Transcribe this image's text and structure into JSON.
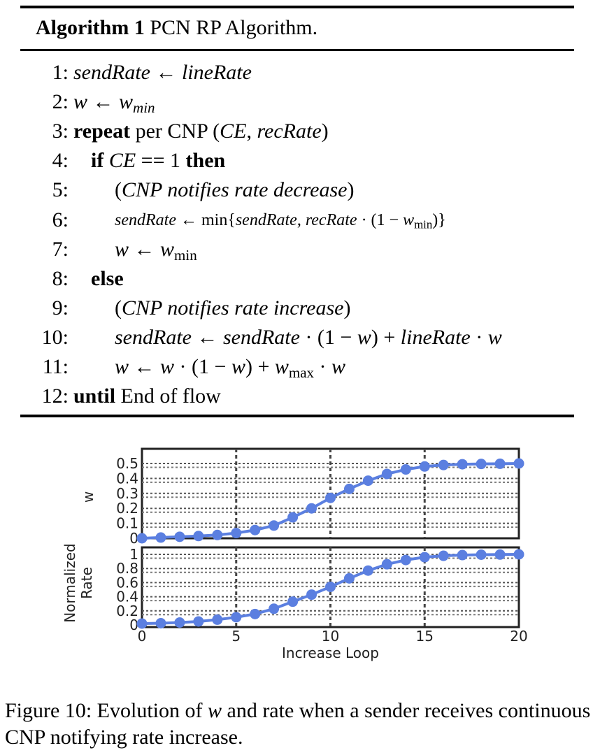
{
  "algorithm": {
    "label": "Algorithm 1",
    "title": "PCN RP Algorithm.",
    "lines": [
      {
        "num": "1:",
        "indent": 0,
        "parts": [
          {
            "t": "sendRate",
            "s": "it"
          },
          {
            "t": " ← ",
            "s": ""
          },
          {
            "t": "lineRate",
            "s": "it"
          }
        ]
      },
      {
        "num": "2:",
        "indent": 0,
        "parts": [
          {
            "t": "w",
            "s": "it"
          },
          {
            "t": " ← ",
            "s": ""
          },
          {
            "t": "w",
            "s": "it"
          },
          {
            "t": "min",
            "s": "it-sub"
          }
        ]
      },
      {
        "num": "3:",
        "indent": 0,
        "parts": [
          {
            "t": "repeat",
            "s": "b"
          },
          {
            "t": " per CNP (",
            "s": ""
          },
          {
            "t": "CE",
            "s": "it"
          },
          {
            "t": ", ",
            "s": ""
          },
          {
            "t": "recRate",
            "s": "it"
          },
          {
            "t": ")",
            "s": ""
          }
        ]
      },
      {
        "num": "4:",
        "indent": 1,
        "parts": [
          {
            "t": "if",
            "s": "b"
          },
          {
            "t": "  ",
            "s": ""
          },
          {
            "t": "CE",
            "s": "it"
          },
          {
            "t": " == 1  ",
            "s": ""
          },
          {
            "t": "then",
            "s": "b"
          }
        ]
      },
      {
        "num": "5:",
        "indent": 2,
        "parts": [
          {
            "t": "(",
            "s": ""
          },
          {
            "t": "CNP notifies rate decrease",
            "s": "it"
          },
          {
            "t": ")",
            "s": ""
          }
        ]
      },
      {
        "num": "6:",
        "indent": 2,
        "small": true,
        "parts": [
          {
            "t": "sendRate",
            "s": "it"
          },
          {
            "t": " ← min{",
            "s": ""
          },
          {
            "t": "sendRate",
            "s": "it"
          },
          {
            "t": ", ",
            "s": ""
          },
          {
            "t": "recRate",
            "s": "it"
          },
          {
            "t": " · (1 − ",
            "s": ""
          },
          {
            "t": "w",
            "s": "it"
          },
          {
            "t": "min",
            "s": "sub"
          },
          {
            "t": ")}",
            "s": ""
          }
        ]
      },
      {
        "num": "7:",
        "indent": 2,
        "parts": [
          {
            "t": "w",
            "s": "it"
          },
          {
            "t": " ← ",
            "s": ""
          },
          {
            "t": "w",
            "s": "it"
          },
          {
            "t": "min",
            "s": "sub"
          }
        ]
      },
      {
        "num": "8:",
        "indent": 1,
        "parts": [
          {
            "t": "else",
            "s": "b"
          }
        ]
      },
      {
        "num": "9:",
        "indent": 2,
        "parts": [
          {
            "t": "(",
            "s": ""
          },
          {
            "t": "CNP notifies rate increase",
            "s": "it"
          },
          {
            "t": ")",
            "s": ""
          }
        ]
      },
      {
        "num": "10:",
        "indent": 2,
        "parts": [
          {
            "t": "sendRate",
            "s": "it"
          },
          {
            "t": " ← ",
            "s": ""
          },
          {
            "t": "sendRate",
            "s": "it"
          },
          {
            "t": " · (1 − ",
            "s": ""
          },
          {
            "t": "w",
            "s": "it"
          },
          {
            "t": ") + ",
            "s": ""
          },
          {
            "t": "lineRate",
            "s": "it"
          },
          {
            "t": " · ",
            "s": ""
          },
          {
            "t": "w",
            "s": "it"
          }
        ]
      },
      {
        "num": "11:",
        "indent": 2,
        "parts": [
          {
            "t": "w",
            "s": "it"
          },
          {
            "t": " ← ",
            "s": ""
          },
          {
            "t": "w",
            "s": "it"
          },
          {
            "t": " · (1 − ",
            "s": ""
          },
          {
            "t": "w",
            "s": "it"
          },
          {
            "t": ") + ",
            "s": ""
          },
          {
            "t": "w",
            "s": "it"
          },
          {
            "t": "max",
            "s": "sub"
          },
          {
            "t": " · ",
            "s": ""
          },
          {
            "t": "w",
            "s": "it"
          }
        ]
      },
      {
        "num": "12:",
        "indent": 0,
        "parts": [
          {
            "t": "until",
            "s": "b"
          },
          {
            "t": " End of flow",
            "s": ""
          }
        ]
      }
    ]
  },
  "chart_data": [
    {
      "type": "line",
      "ylabel": "w",
      "ylim": [
        0,
        0.5
      ],
      "yticks": [
        "0",
        "0.1",
        "0.2",
        "0.3",
        "0.4",
        "0.5"
      ],
      "xlim": [
        0,
        20
      ],
      "grid": true,
      "color": "#5b7fe0",
      "x": [
        0,
        1,
        2,
        3,
        4,
        5,
        6,
        7,
        8,
        9,
        10,
        11,
        12,
        13,
        14,
        15,
        16,
        17,
        18,
        19,
        20
      ],
      "series": [
        {
          "values": [
            0.0,
            0.005,
            0.01,
            0.015,
            0.022,
            0.035,
            0.055,
            0.085,
            0.14,
            0.2,
            0.27,
            0.33,
            0.385,
            0.43,
            0.46,
            0.48,
            0.49,
            0.495,
            0.497,
            0.498,
            0.5
          ]
        }
      ]
    },
    {
      "type": "line",
      "ylabel": "Normalized Rate",
      "ylim": [
        0,
        1
      ],
      "yticks": [
        "0",
        "0.2",
        "0.4",
        "0.6",
        "0.8",
        "1"
      ],
      "xlim": [
        0,
        20
      ],
      "xticks": [
        "0",
        "5",
        "10",
        "15",
        "20"
      ],
      "xlabel": "Increase Loop",
      "grid": true,
      "color": "#5b7fe0",
      "x": [
        0,
        1,
        2,
        3,
        4,
        5,
        6,
        7,
        8,
        9,
        10,
        11,
        12,
        13,
        14,
        15,
        16,
        17,
        18,
        19,
        20
      ],
      "series": [
        {
          "values": [
            0.02,
            0.025,
            0.035,
            0.05,
            0.075,
            0.11,
            0.155,
            0.23,
            0.33,
            0.43,
            0.54,
            0.66,
            0.77,
            0.86,
            0.92,
            0.96,
            0.98,
            0.99,
            0.995,
            0.997,
            1.0
          ]
        }
      ]
    }
  ],
  "caption": {
    "prefix": "Figure 10: Evolution of ",
    "var": "w",
    "suffix": " and rate when a sender receives continuous CNP notifying rate increase."
  }
}
